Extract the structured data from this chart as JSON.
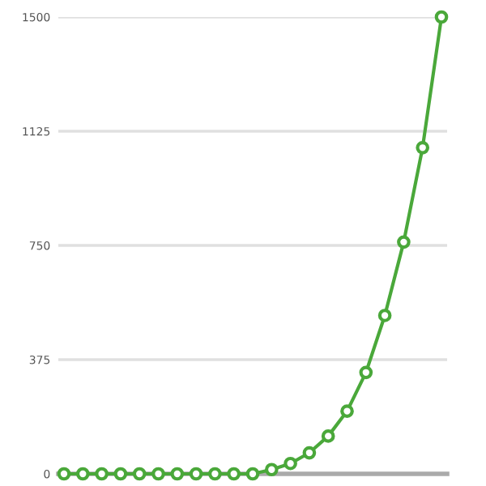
{
  "chart_data": {
    "type": "line",
    "categories": [
      null,
      null,
      null,
      null,
      null,
      null,
      null,
      null,
      null,
      null,
      null,
      null,
      null,
      null,
      null,
      null,
      null,
      null,
      null,
      null,
      null
    ],
    "series": [
      {
        "color": "#4aa83a",
        "values": [
          0,
          0,
          0,
          0,
          0,
          0,
          0,
          0,
          0,
          0,
          0,
          14,
          34,
          69,
          124,
          206,
          333,
          520,
          761,
          1071,
          1500
        ]
      }
    ],
    "ylim": [
      0,
      1500
    ],
    "yticks": [
      0,
      375,
      750,
      1125,
      1500
    ],
    "grid": "y",
    "marker": "circle",
    "line_style": "solid",
    "legend": false
  }
}
